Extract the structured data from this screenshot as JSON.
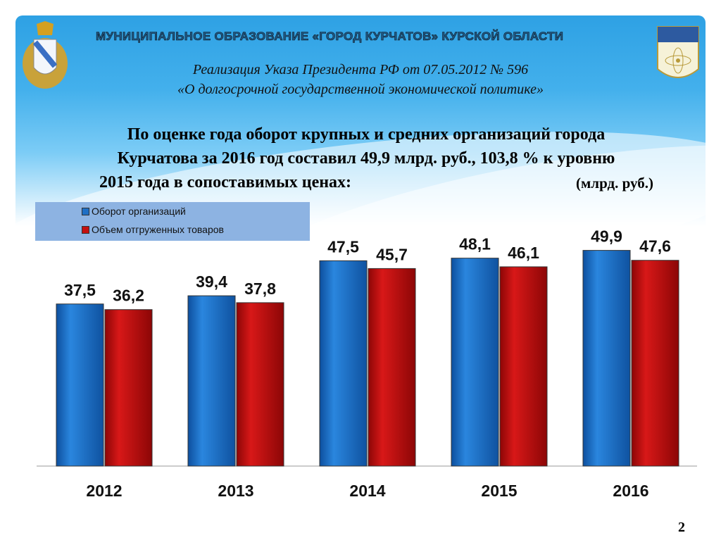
{
  "header": {
    "municipality": "МУНИЦИПАЛЬНОЕ  ОБРАЗОВАНИЕ  «ГОРОД КУРЧАТОВ»  КУРСКОЙ  ОБЛАСТИ",
    "subtitle_line1": "Реализация Указа Президента РФ от 07.05.2012 № 596",
    "subtitle_line2": "«О долгосрочной государственной экономической политике»",
    "headline_line1": "По оценке года оборот крупных и средних организаций города",
    "headline_line2": "Курчатова за  2016 год составил 49,9 млрд. руб., 103,8 % к уровню",
    "headline_line3": "2015 года в сопоставимых ценах:",
    "units": "(млрд. руб.)"
  },
  "page_number": "2",
  "chart_data": {
    "type": "bar",
    "categories": [
      "2012",
      "2013",
      "2014",
      "2015",
      "2016"
    ],
    "series": [
      {
        "name": "Оборот организаций",
        "values": [
          37.5,
          39.4,
          47.5,
          48.1,
          49.9
        ],
        "labels": [
          "37,5",
          "39,4",
          "47,5",
          "48,1",
          "49,9"
        ],
        "color": "#1f6fc5"
      },
      {
        "name": "Объем отгруженных товаров",
        "values": [
          36.2,
          37.8,
          45.7,
          46.1,
          47.6
        ],
        "labels": [
          "36,2",
          "37,8",
          "45,7",
          "46,1",
          "47,6"
        ],
        "color": "#c41010"
      }
    ],
    "ylim": [
      0,
      50
    ],
    "legend": "top-left",
    "grid": false
  }
}
